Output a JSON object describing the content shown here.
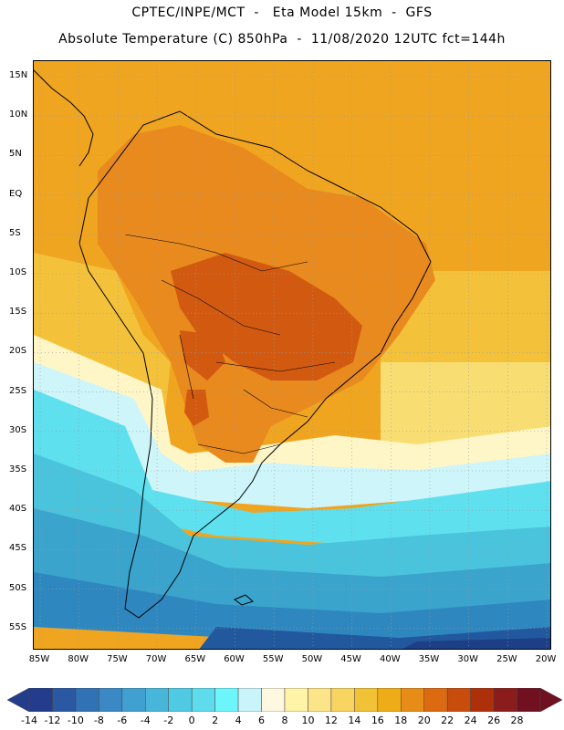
{
  "header": {
    "line1": "CPTEC/INPE/MCT  -   Eta Model 15km  -  GFS",
    "line2": "Absolute Temperature (C) 850hPa  -  11/08/2020 12UTC fct=144h"
  },
  "map": {
    "lat_labels": [
      "15N",
      "10N",
      "5N",
      "EQ",
      "5S",
      "10S",
      "15S",
      "20S",
      "25S",
      "30S",
      "35S",
      "40S",
      "45S",
      "50S",
      "55S"
    ],
    "lon_labels": [
      "85W",
      "80W",
      "75W",
      "70W",
      "65W",
      "60W",
      "55W",
      "50W",
      "45W",
      "40W",
      "35W",
      "30W",
      "25W",
      "20W"
    ],
    "colors": {
      "hot_core": "#d25a10",
      "orange": "#e88a1e",
      "orange_light": "#f0a520",
      "yellow_orange": "#f4c23a",
      "yellow": "#f8de72",
      "cream": "#fff6c8",
      "pale_cyan": "#cdf5fa",
      "cyan": "#5ee0ee",
      "light_blue": "#4ac4dc",
      "mid_blue": "#3aa4cc",
      "blue": "#2e88bf",
      "dark_blue": "#22589e",
      "navy": "#1c3f86",
      "land_outline": "#000000",
      "grid_line": "#999999"
    }
  },
  "colorbar": {
    "labels": [
      "-14",
      "-12",
      "-10",
      "-8",
      "-6",
      "-4",
      "-2",
      "0",
      "2",
      "4",
      "6",
      "8",
      "10",
      "12",
      "14",
      "16",
      "18",
      "20",
      "22",
      "24",
      "26",
      "28"
    ],
    "colors": [
      "#243c8c",
      "#2a58a2",
      "#3072b4",
      "#3a88c4",
      "#40a0d0",
      "#48b6da",
      "#50cae2",
      "#5edcec",
      "#6cf6fc",
      "#c8f4fa",
      "#fff8e0",
      "#fff4a8",
      "#fce488",
      "#f8d460",
      "#f2c236",
      "#eead18",
      "#e88c18",
      "#dc6a10",
      "#c84c0c",
      "#ae300a",
      "#8c1c1c",
      "#701020"
    ]
  }
}
